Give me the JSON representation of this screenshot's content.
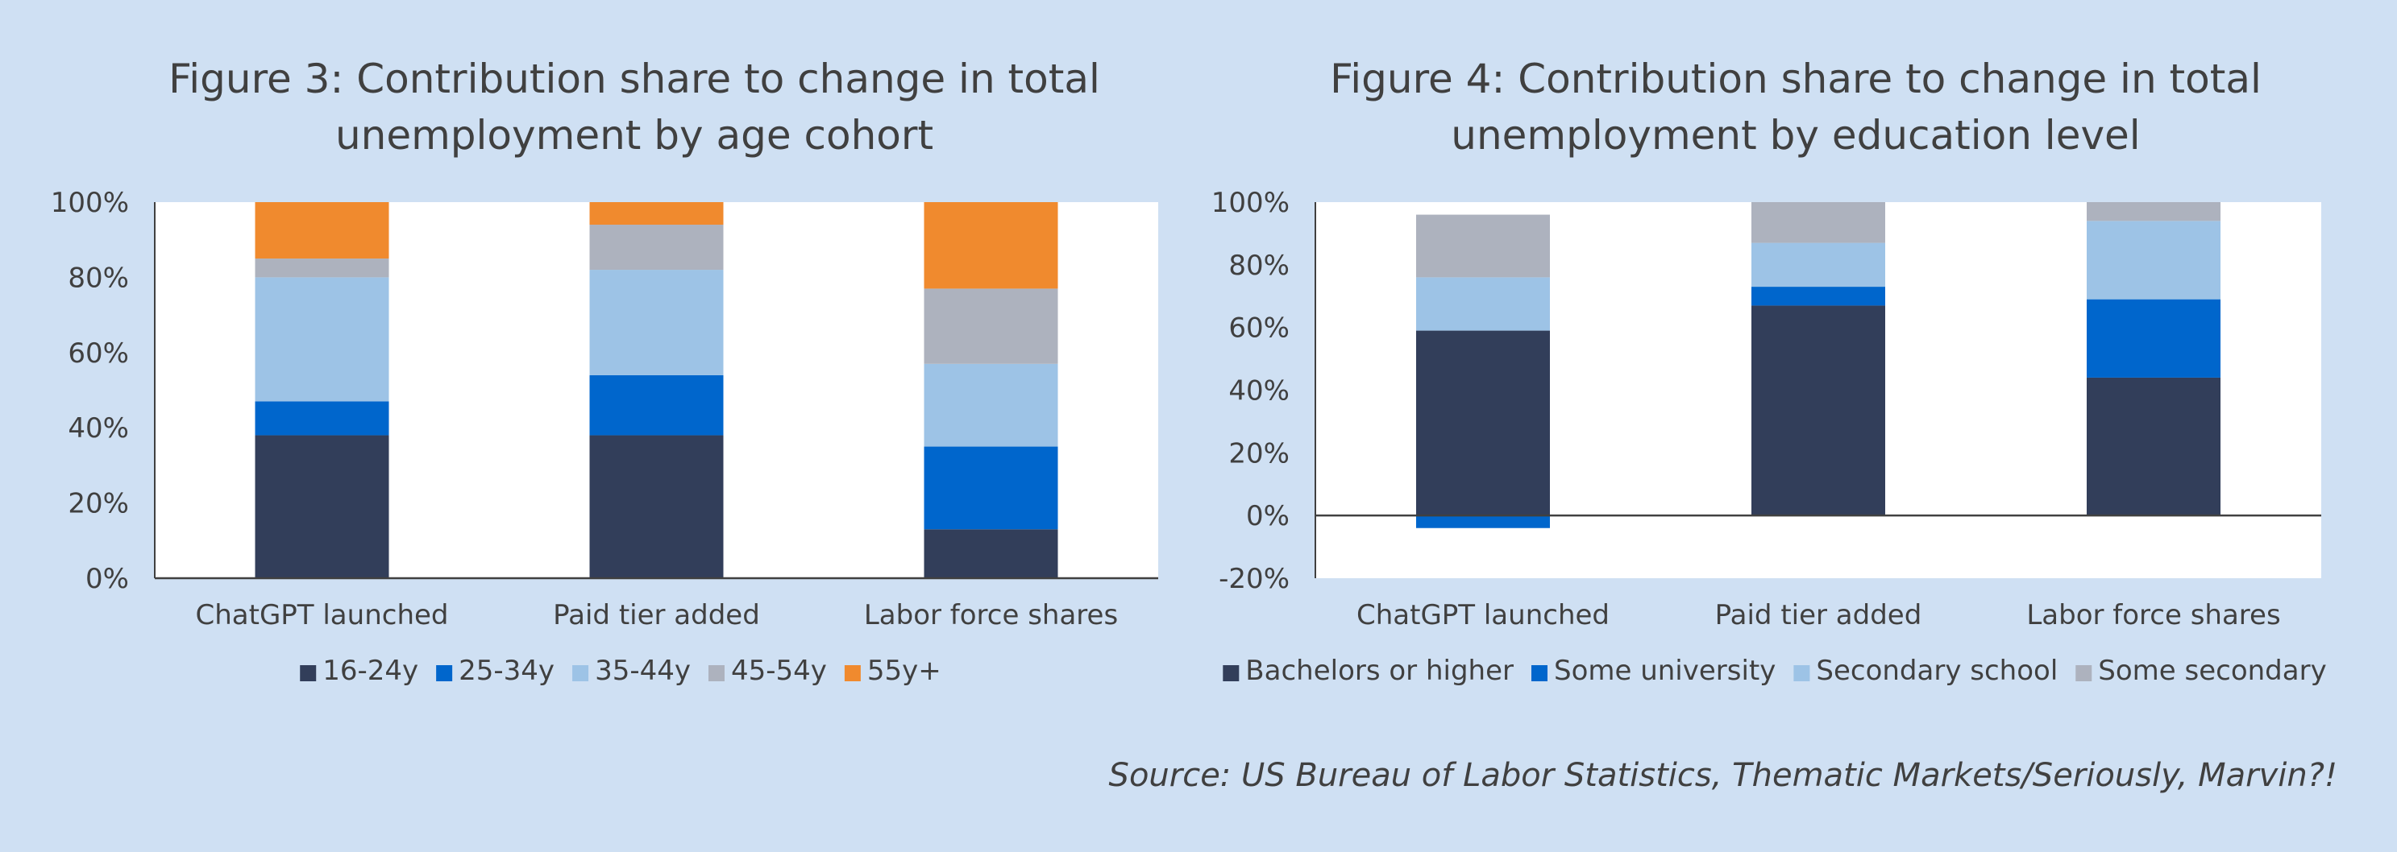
{
  "chart_data": [
    {
      "type": "bar",
      "stacked": true,
      "title": "Figure 3: Contribution share to change in total unemployment by age cohort",
      "title_lines": [
        "Figure 3: Contribution share to change in total",
        "unemployment by age cohort"
      ],
      "categories": [
        "ChatGPT launched",
        "Paid tier added",
        "Labor force shares"
      ],
      "series": [
        {
          "name": "16-24y",
          "color": "#323e5a",
          "values": [
            38,
            38,
            13
          ]
        },
        {
          "name": "25-34y",
          "color": "#0066cc",
          "values": [
            9,
            16,
            22
          ]
        },
        {
          "name": "35-44y",
          "color": "#9dc3e6",
          "values": [
            33,
            28,
            22
          ]
        },
        {
          "name": "45-54y",
          "color": "#adb2be",
          "values": [
            5,
            12,
            20
          ]
        },
        {
          "name": "55y+",
          "color": "#f08a2e",
          "values": [
            15,
            6,
            23
          ]
        }
      ],
      "ylim": [
        0,
        100
      ],
      "yticks": [
        0,
        20,
        40,
        60,
        80,
        100
      ],
      "ytick_labels": [
        "0%",
        "20%",
        "40%",
        "60%",
        "80%",
        "100%"
      ],
      "legend": "bottom",
      "xlabel": "",
      "ylabel": ""
    },
    {
      "type": "bar",
      "stacked": true,
      "title": "Figure 4: Contribution share to change in total unemployment by education level",
      "title_lines": [
        "Figure 4: Contribution share to change in total",
        "unemployment by education level"
      ],
      "categories": [
        "ChatGPT launched",
        "Paid tier added",
        "Labor force shares"
      ],
      "series": [
        {
          "name": "Bachelors or higher",
          "color": "#323e5a",
          "values": [
            59,
            67,
            44
          ]
        },
        {
          "name": "Some university",
          "color": "#0066cc",
          "values": [
            -4,
            6,
            25
          ]
        },
        {
          "name": "Secondary school",
          "color": "#9dc3e6",
          "values": [
            17,
            14,
            25
          ]
        },
        {
          "name": "Some secondary",
          "color": "#adb2be",
          "values": [
            20,
            13,
            6
          ]
        }
      ],
      "ylim": [
        -20,
        100
      ],
      "yticks": [
        -20,
        0,
        20,
        40,
        60,
        80,
        100
      ],
      "ytick_labels": [
        "-20%",
        "0%",
        "20%",
        "40%",
        "60%",
        "80%",
        "100%"
      ],
      "legend": "bottom",
      "xlabel": "",
      "ylabel": ""
    }
  ],
  "source": "Source: US Bureau of Labor Statistics, Thematic Markets/Seriously, Marvin?!"
}
